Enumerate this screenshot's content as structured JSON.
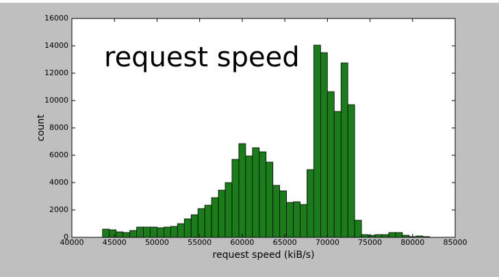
{
  "chart_data": {
    "type": "histogram",
    "annotation": "request speed",
    "xlabel": "request speed (kiB/s)",
    "ylabel": "count",
    "bins": [
      43600,
      44400,
      45200,
      46000,
      46800,
      47600,
      48400,
      49200,
      50000,
      50800,
      51600,
      52400,
      53200,
      54000,
      54800,
      55600,
      56400,
      57200,
      58000,
      58800,
      59600,
      60400,
      61200,
      62000,
      62800,
      63600,
      64400,
      65200,
      66000,
      66800,
      67600,
      68400,
      69200,
      70000,
      70800,
      71600,
      72400,
      73200,
      74000,
      74800,
      75600,
      76400,
      77200,
      78000,
      78800,
      79600,
      80400,
      81200,
      82000
    ],
    "counts": [
      600,
      550,
      400,
      350,
      500,
      750,
      750,
      750,
      700,
      750,
      800,
      1000,
      1350,
      1650,
      2100,
      2350,
      2900,
      3450,
      4000,
      5700,
      6850,
      5950,
      6550,
      6250,
      5500,
      3800,
      3400,
      2550,
      2600,
      2400,
      4950,
      14050,
      13500,
      10650,
      9200,
      12750,
      9700,
      1250,
      200,
      150,
      200,
      200,
      350,
      350,
      150,
      50,
      100,
      50
    ],
    "color": "#1a7d1a",
    "xlim": [
      40000,
      85000
    ],
    "ylim": [
      0,
      16000
    ],
    "xticks": [
      40000,
      45000,
      50000,
      55000,
      60000,
      65000,
      70000,
      75000,
      80000,
      85000
    ],
    "yticks": [
      0,
      2000,
      4000,
      6000,
      8000,
      10000,
      12000,
      14000,
      16000
    ]
  }
}
